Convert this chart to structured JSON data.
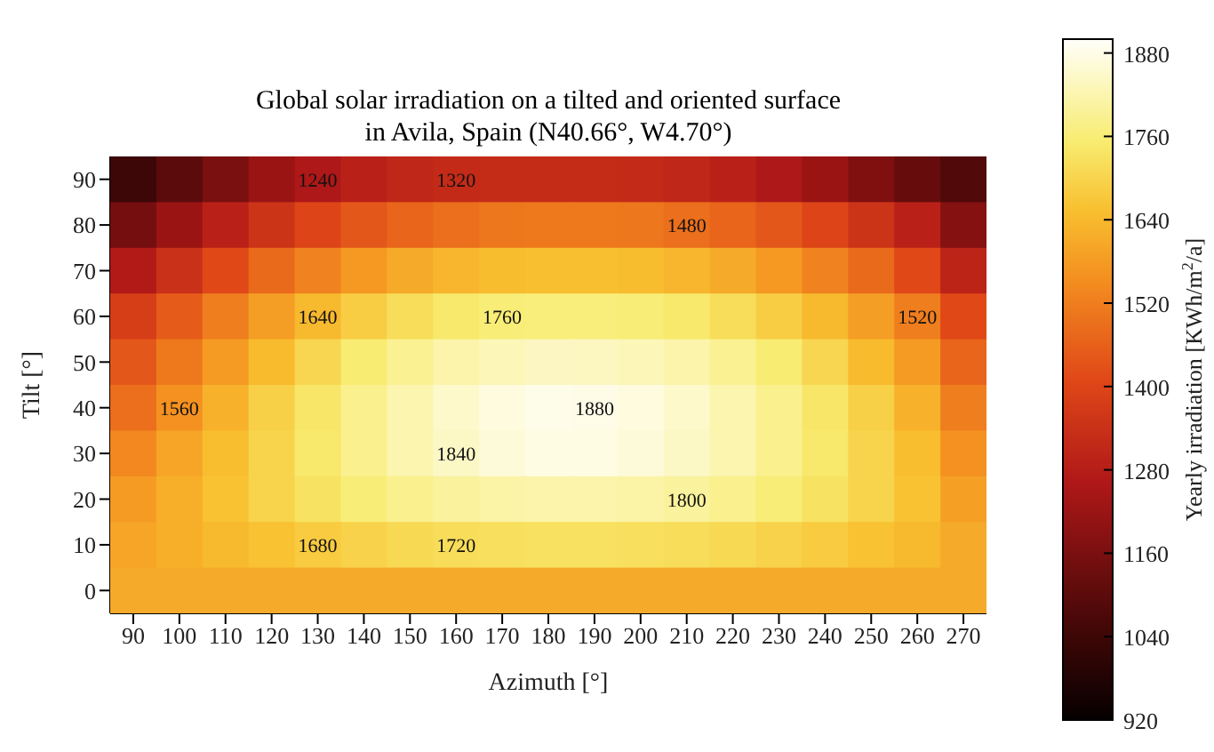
{
  "chart_data": {
    "type": "heatmap",
    "title": "Global solar irradiation on a tilted and oriented surface\nin Avila, Spain (N40.66°, W4.70°)",
    "xlabel": "Azimuth [°]",
    "ylabel": "Tilt [°]",
    "clabel": "Yearly irradiation [KWh/m$^{2}$/a]",
    "categories": [
      "90",
      "100",
      "110",
      "120",
      "130",
      "140",
      "150",
      "160",
      "170",
      "180",
      "190",
      "200",
      "210",
      "220",
      "230",
      "240",
      "250",
      "260",
      "270"
    ],
    "y_categories": [
      "90",
      "80",
      "70",
      "60",
      "50",
      "40",
      "30",
      "20",
      "10",
      "0"
    ],
    "cells": [
      [
        1040,
        1100,
        1160,
        1220,
        1260,
        1290,
        1310,
        1320,
        1325,
        1325,
        1325,
        1320,
        1310,
        1290,
        1260,
        1220,
        1170,
        1120,
        1080
      ],
      [
        1150,
        1220,
        1290,
        1350,
        1400,
        1440,
        1470,
        1490,
        1505,
        1510,
        1510,
        1505,
        1490,
        1470,
        1440,
        1400,
        1350,
        1290,
        1180
      ],
      [
        1270,
        1340,
        1410,
        1480,
        1530,
        1575,
        1610,
        1635,
        1648,
        1655,
        1655,
        1648,
        1635,
        1610,
        1575,
        1530,
        1480,
        1410,
        1300
      ],
      [
        1380,
        1450,
        1520,
        1585,
        1640,
        1685,
        1720,
        1745,
        1760,
        1765,
        1765,
        1760,
        1745,
        1720,
        1685,
        1640,
        1585,
        1520,
        1410
      ],
      [
        1440,
        1510,
        1580,
        1645,
        1705,
        1755,
        1790,
        1815,
        1830,
        1840,
        1838,
        1830,
        1815,
        1790,
        1755,
        1705,
        1645,
        1580,
        1470
      ],
      [
        1490,
        1560,
        1625,
        1690,
        1740,
        1785,
        1820,
        1850,
        1870,
        1882,
        1880,
        1870,
        1850,
        1820,
        1785,
        1740,
        1690,
        1625,
        1520
      ],
      [
        1540,
        1600,
        1650,
        1700,
        1745,
        1785,
        1820,
        1845,
        1865,
        1875,
        1875,
        1865,
        1845,
        1820,
        1785,
        1745,
        1700,
        1650,
        1560
      ],
      [
        1580,
        1620,
        1660,
        1700,
        1730,
        1760,
        1785,
        1800,
        1810,
        1815,
        1815,
        1810,
        1800,
        1785,
        1760,
        1730,
        1700,
        1660,
        1590
      ],
      [
        1600,
        1620,
        1640,
        1660,
        1680,
        1695,
        1710,
        1720,
        1725,
        1728,
        1728,
        1725,
        1720,
        1710,
        1695,
        1680,
        1660,
        1640,
        1610
      ],
      [
        1610,
        1610,
        1610,
        1610,
        1610,
        1610,
        1610,
        1610,
        1610,
        1610,
        1610,
        1610,
        1610,
        1610,
        1610,
        1610,
        1610,
        1610,
        1610
      ]
    ],
    "clim": [
      920,
      1900
    ],
    "cticks": [
      920,
      1040,
      1160,
      1280,
      1400,
      1520,
      1640,
      1760,
      1880
    ],
    "annotations": [
      "1880",
      "1840",
      "1800",
      "1760",
      "1720",
      "1680",
      "1640",
      "1320",
      "1240",
      "1560",
      "1520",
      "1480"
    ]
  }
}
